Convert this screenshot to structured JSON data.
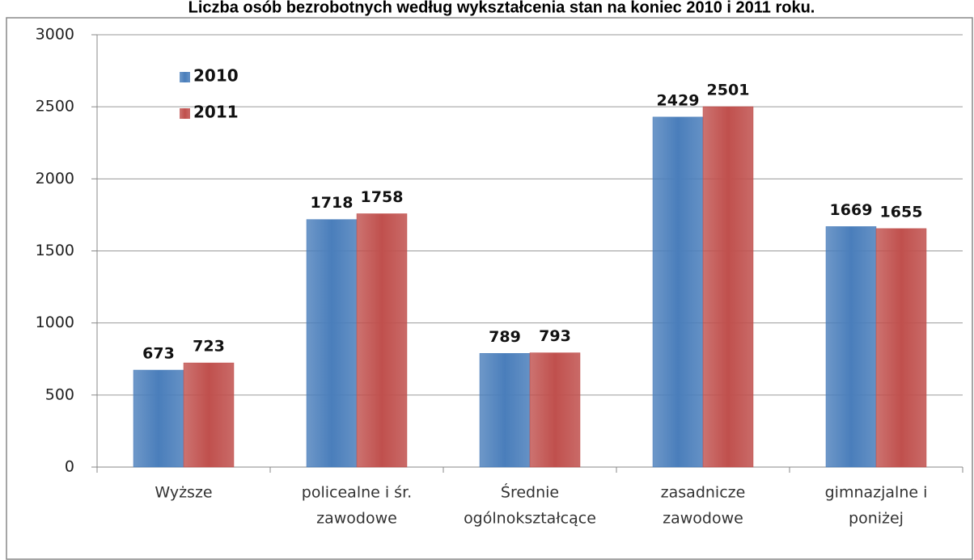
{
  "chart_data": {
    "type": "bar",
    "title": "Liczba osób bezrobotnych według wykształcenia stan na koniec 2010 i 2011 roku.",
    "categories": [
      [
        "Wyższe"
      ],
      [
        "policealne i śr.",
        "zawodowe"
      ],
      [
        "Średnie",
        "ogólnokształcące"
      ],
      [
        "zasadnicze",
        "zawodowe"
      ],
      [
        "gimnazjalne i",
        "poniżej"
      ]
    ],
    "series": [
      {
        "name": "2010",
        "color": "#4a7ebb",
        "values": [
          673,
          1718,
          789,
          2429,
          1669
        ]
      },
      {
        "name": "2011",
        "color": "#c0504d",
        "values": [
          723,
          1758,
          793,
          2501,
          1655
        ]
      }
    ],
    "ylim": [
      0,
      3000
    ],
    "yticks": [
      0,
      500,
      1000,
      1500,
      2000,
      2500,
      3000
    ],
    "grid": true,
    "legend": "top-left"
  }
}
